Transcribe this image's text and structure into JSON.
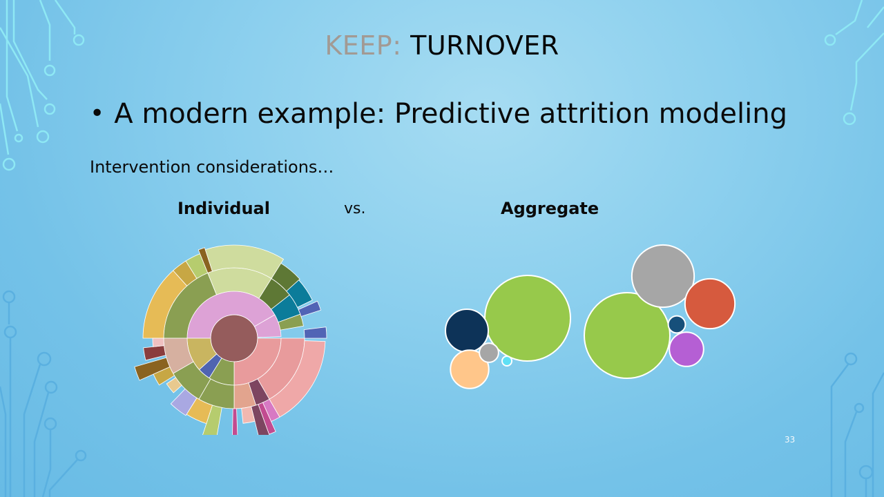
{
  "slide": {
    "title_prefix": "KEEP: ",
    "title_main": "TURNOVER",
    "bullet": "A modern example: Predictive attrition modeling",
    "subheading": "Intervention considerations…",
    "individual_label": "Individual",
    "vs_label": "vs.",
    "aggregate_label": "Aggregate",
    "page_number": "33"
  },
  "colors": {
    "title_prefix": "#a29a94",
    "circuit_light": "#8ee8f4",
    "circuit_blue": "#5ab0e0"
  },
  "sunburst_colors": {
    "center": "#955c5c",
    "ring1": [
      "#dda2d6",
      "#e89b9c",
      "#8a9f52",
      "#4f64b1",
      "#c9b560"
    ],
    "ring2": [
      "#8a9f52",
      "#cfdc9e",
      "#5e7835",
      "#0b7c9a",
      "#5164b5",
      "#e89b9c",
      "#e2a48e",
      "#7d4560"
    ],
    "outer": [
      "#e6bb56",
      "#c7a744",
      "#b6cc6e",
      "#8a6320",
      "#cfdc9e",
      "#5e7835",
      "#0b7c9a",
      "#5164b5",
      "#d779c3",
      "#7d4560",
      "#c24b90"
    ]
  },
  "bubble_charts": [
    {
      "name": "left-cluster",
      "bubbles": [
        {
          "color": "#97c94b",
          "size": 1.0
        },
        {
          "color": "#0d3358",
          "size": 0.25
        },
        {
          "color": "#ffc68a",
          "size": 0.2
        },
        {
          "color": "#a6a6a6",
          "size": 0.05
        },
        {
          "color": "#5fe0f5",
          "size": 0.01
        }
      ]
    },
    {
      "name": "right-cluster",
      "bubbles": [
        {
          "color": "#97c94b",
          "size": 1.0
        },
        {
          "color": "#a6a6a6",
          "size": 0.53
        },
        {
          "color": "#d65a3e",
          "size": 0.34
        },
        {
          "color": "#b55fd4",
          "size": 0.16
        },
        {
          "color": "#164f7a",
          "size": 0.04
        }
      ]
    }
  ]
}
